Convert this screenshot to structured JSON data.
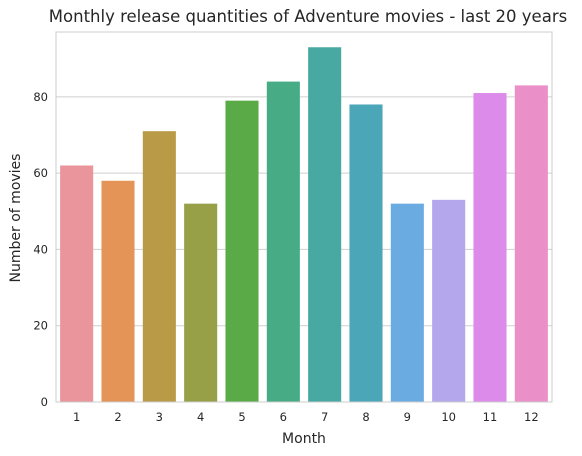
{
  "chart_data": {
    "type": "bar",
    "title": "Monthly release quantities of Adventure movies - last 20 years",
    "xlabel": "Month",
    "ylabel": "Number of movies",
    "categories": [
      "1",
      "2",
      "3",
      "4",
      "5",
      "6",
      "7",
      "8",
      "9",
      "10",
      "11",
      "12"
    ],
    "values": [
      62,
      58,
      71,
      52,
      79,
      84,
      93,
      78,
      52,
      53,
      81,
      83
    ],
    "colors": [
      "#ea949b",
      "#e59457",
      "#b99a47",
      "#97a047",
      "#5aab48",
      "#47ac85",
      "#47a9a1",
      "#4ba7b8",
      "#6aabe2",
      "#b4a7ec",
      "#dd8bea",
      "#ea8fc8"
    ],
    "ylim": [
      0,
      97
    ],
    "yticks": [
      0,
      20,
      40,
      60,
      80
    ],
    "grid": "horizontal"
  }
}
